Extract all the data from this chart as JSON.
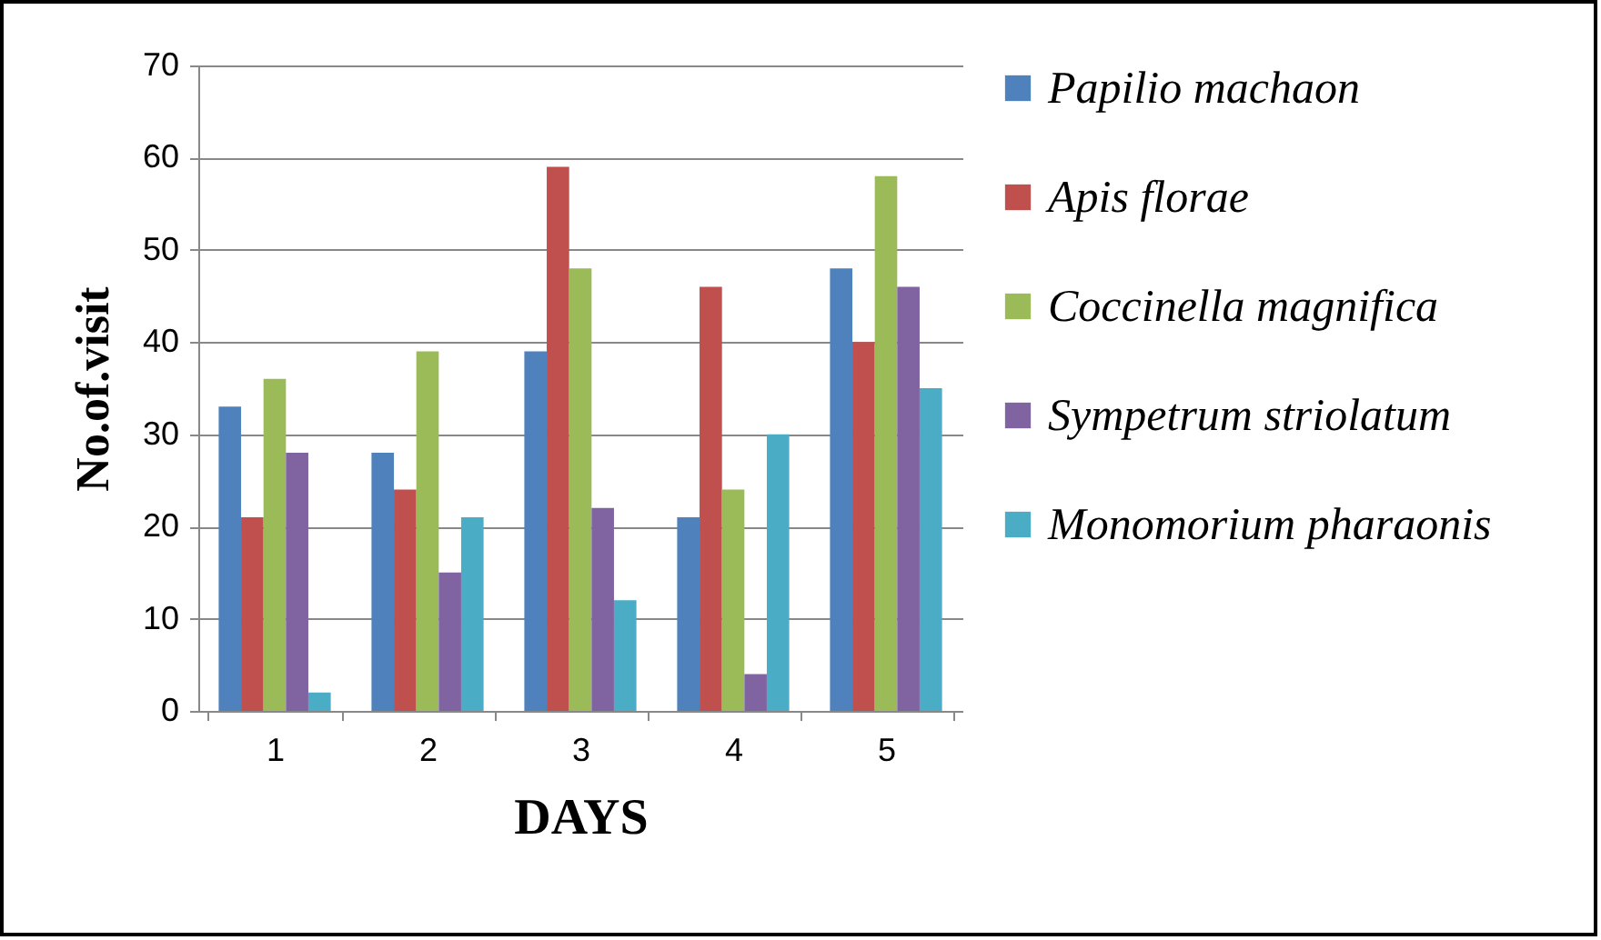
{
  "chart_data": {
    "type": "bar",
    "xlabel": "DAYS",
    "ylabel": "No.of.visit",
    "categories": [
      "1",
      "2",
      "3",
      "4",
      "5"
    ],
    "series": [
      {
        "name": "Papilio machaon",
        "color": "#4f81bd",
        "values": [
          33,
          28,
          39,
          21,
          48
        ]
      },
      {
        "name": "Apis florae",
        "color": "#c0504d",
        "values": [
          21,
          24,
          59,
          46,
          40
        ]
      },
      {
        "name": "Coccinella magnifica",
        "color": "#9bbb59",
        "values": [
          36,
          39,
          48,
          24,
          58
        ]
      },
      {
        "name": "Sympetrum striolatum",
        "color": "#8064a2",
        "values": [
          28,
          15,
          22,
          4,
          46
        ]
      },
      {
        "name": "Monomorium pharaonis",
        "color": "#4bacc6",
        "values": [
          2,
          21,
          12,
          30,
          35
        ]
      }
    ],
    "ylim": [
      0,
      70
    ],
    "yticks": [
      0,
      10,
      20,
      30,
      40,
      50,
      60,
      70
    ],
    "grid": "y",
    "legend": "right"
  }
}
